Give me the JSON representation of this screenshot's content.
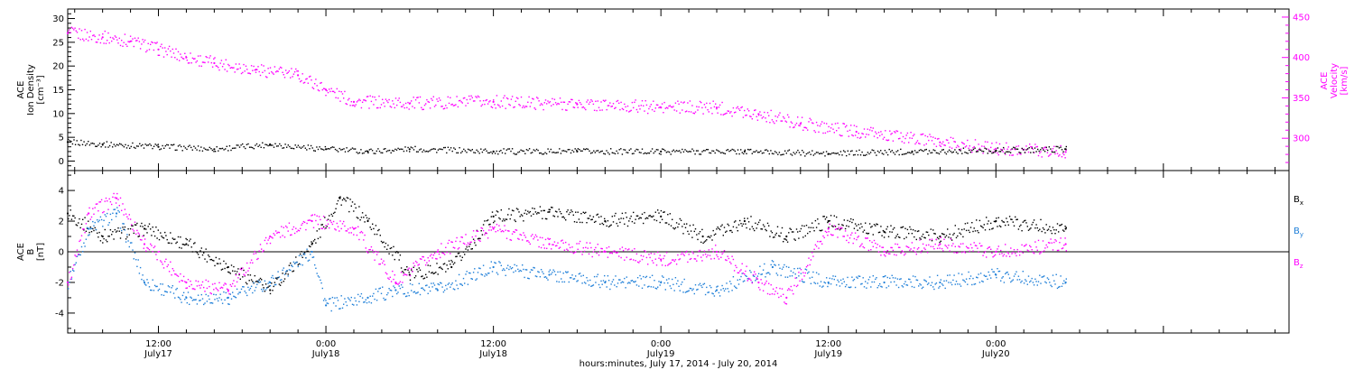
{
  "x_axis": {
    "title": "hours:minutes, July 17, 2014 - July 20, 2014",
    "tick_times": [
      "12:00",
      "0:00",
      "12:00",
      "0:00",
      "12:00",
      "0:00"
    ],
    "tick_dates": [
      "July17",
      "July18",
      "July18",
      "July19",
      "July19",
      "July20"
    ]
  },
  "colors": {
    "black": "#000000",
    "magenta": "#ff00ff",
    "blue": "#1f7fd8"
  },
  "chart_data": [
    {
      "type": "scatter",
      "panel": "top",
      "title": "",
      "x_range": [
        "2014-07-17 05:30",
        "2014-07-20 21:00"
      ],
      "left_axis": {
        "label_lines": [
          "ACE",
          "Ion Density",
          "[cm⁻³]"
        ],
        "ylim": [
          -2,
          32
        ],
        "ticks": [
          0,
          5,
          10,
          15,
          20,
          25,
          30
        ],
        "color": "#000000"
      },
      "right_axis": {
        "label_lines": [
          "ACE",
          "Velocity",
          "[km/s]"
        ],
        "ylim": [
          260,
          460
        ],
        "ticks": [
          300,
          350,
          400,
          450
        ],
        "color": "#ff00ff"
      },
      "series": [
        {
          "axis": "right",
          "color": "#ff00ff",
          "x": [
            "2014-07-17 05:30",
            "2014-07-17 08:00",
            "2014-07-17 10:00",
            "2014-07-17 12:00",
            "2014-07-17 14:00",
            "2014-07-17 16:00",
            "2014-07-17 19:00",
            "2014-07-17 22:00",
            "2014-07-18 00:00",
            "2014-07-18 02:00",
            "2014-07-18 06:00",
            "2014-07-18 12:00",
            "2014-07-18 18:00",
            "2014-07-19 00:00",
            "2014-07-19 04:00",
            "2014-07-19 07:00",
            "2014-07-19 10:00",
            "2014-07-19 14:00",
            "2014-07-19 20:00",
            "2014-07-20 00:00",
            "2014-07-20 02:00",
            "2014-07-20 05:00"
          ],
          "y": [
            430,
            425,
            420,
            410,
            400,
            393,
            385,
            378,
            360,
            345,
            343,
            345,
            342,
            338,
            338,
            330,
            318,
            308,
            295,
            287,
            286,
            283
          ]
        },
        {
          "axis": "left",
          "color": "#000000",
          "x": [
            "2014-07-17 05:30",
            "2014-07-17 08:00",
            "2014-07-17 12:00",
            "2014-07-17 16:00",
            "2014-07-17 20:00",
            "2014-07-18 00:00",
            "2014-07-18 03:00",
            "2014-07-18 06:00",
            "2014-07-18 12:00",
            "2014-07-18 18:00",
            "2014-07-19 00:00",
            "2014-07-19 06:00",
            "2014-07-19 12:00",
            "2014-07-19 18:00",
            "2014-07-20 00:00",
            "2014-07-20 05:00"
          ],
          "y": [
            4,
            3.5,
            3,
            2.5,
            3.5,
            2.5,
            2,
            2.5,
            2,
            2,
            2,
            2,
            1.5,
            2,
            2.2,
            2.5
          ]
        }
      ]
    },
    {
      "type": "scatter",
      "panel": "bottom",
      "title": "",
      "x_range": [
        "2014-07-17 05:30",
        "2014-07-20 21:00"
      ],
      "left_axis": {
        "label_lines": [
          "ACE",
          "B",
          "[nT]"
        ],
        "ylim": [
          -5.3,
          5.3
        ],
        "ticks": [
          -4,
          -2,
          0,
          2,
          4
        ],
        "color": "#000000"
      },
      "zero_line": true,
      "legend_position": "right",
      "legend": [
        {
          "name": "B",
          "subscript": "x",
          "color": "#000000"
        },
        {
          "name": "B",
          "subscript": "y",
          "color": "#1f7fd8"
        },
        {
          "name": "B",
          "subscript": "z",
          "color": "#ff00ff"
        }
      ],
      "series": [
        {
          "name": "Bx",
          "color": "#000000",
          "x": [
            "2014-07-17 05:30",
            "2014-07-17 08:00",
            "2014-07-17 11:00",
            "2014-07-17 14:00",
            "2014-07-17 17:00",
            "2014-07-17 20:00",
            "2014-07-17 23:00",
            "2014-07-18 01:00",
            "2014-07-18 03:00",
            "2014-07-18 06:00",
            "2014-07-18 09:00",
            "2014-07-18 12:00",
            "2014-07-18 16:00",
            "2014-07-18 20:00",
            "2014-07-19 00:00",
            "2014-07-19 03:00",
            "2014-07-19 06:00",
            "2014-07-19 09:00",
            "2014-07-19 12:00",
            "2014-07-19 16:00",
            "2014-07-19 20:00",
            "2014-07-20 00:00",
            "2014-07-20 05:00"
          ],
          "y": [
            2.5,
            1,
            1.5,
            0.5,
            -1,
            -2.5,
            0.5,
            3.5,
            2,
            -1.5,
            -1,
            2.3,
            2.6,
            2,
            2.3,
            1,
            2,
            1,
            2,
            1.3,
            1,
            2,
            1.5
          ]
        },
        {
          "name": "By",
          "color": "#1f7fd8",
          "x": [
            "2014-07-17 05:30",
            "2014-07-17 07:00",
            "2014-07-17 09:00",
            "2014-07-17 11:00",
            "2014-07-17 14:00",
            "2014-07-17 17:00",
            "2014-07-17 20:00",
            "2014-07-17 23:00",
            "2014-07-18 00:00",
            "2014-07-18 03:00",
            "2014-07-18 05:00",
            "2014-07-18 08:00",
            "2014-07-18 12:00",
            "2014-07-18 16:00",
            "2014-07-18 20:00",
            "2014-07-19 00:00",
            "2014-07-19 04:00",
            "2014-07-19 08:00",
            "2014-07-19 12:00",
            "2014-07-19 16:00",
            "2014-07-19 20:00",
            "2014-07-20 00:00",
            "2014-07-20 05:00"
          ],
          "y": [
            -2,
            1.5,
            2.5,
            -2,
            -3,
            -3,
            -2,
            0,
            -3.5,
            -3,
            -2.5,
            -2.5,
            -1,
            -1.5,
            -2,
            -2,
            -2.5,
            -1,
            -2,
            -2,
            -2,
            -1.5,
            -2
          ]
        },
        {
          "name": "Bz",
          "color": "#ff00ff",
          "x": [
            "2014-07-17 05:30",
            "2014-07-17 07:00",
            "2014-07-17 09:00",
            "2014-07-17 11:00",
            "2014-07-17 14:00",
            "2014-07-17 17:00",
            "2014-07-17 20:00",
            "2014-07-17 23:00",
            "2014-07-18 02:00",
            "2014-07-18 05:00",
            "2014-07-18 08:00",
            "2014-07-18 12:00",
            "2014-07-18 16:00",
            "2014-07-18 20:00",
            "2014-07-19 00:00",
            "2014-07-19 04:00",
            "2014-07-19 07:00",
            "2014-07-19 09:00",
            "2014-07-19 12:00",
            "2014-07-19 16:00",
            "2014-07-19 20:00",
            "2014-07-20 00:00",
            "2014-07-20 05:00"
          ],
          "y": [
            -2,
            2.5,
            3.5,
            0.5,
            -2,
            -2.5,
            1,
            2,
            1.5,
            -2,
            0,
            1.5,
            0.5,
            0,
            -0.5,
            0,
            -2,
            -3,
            1.5,
            0,
            0.5,
            0,
            0.5
          ]
        }
      ]
    }
  ]
}
